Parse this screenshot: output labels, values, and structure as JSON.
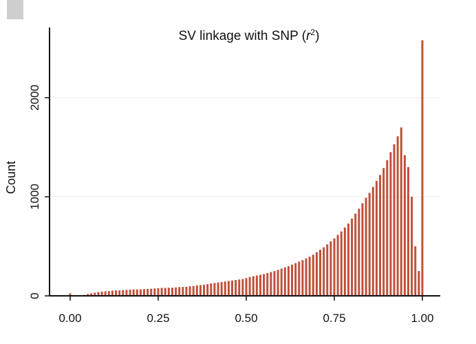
{
  "chart_data": {
    "type": "bar",
    "title": "SV linkage with SNP (r²)",
    "title_main": "SV linkage with SNP (",
    "title_var": "r",
    "title_sup": "2",
    "title_end": ")",
    "xlabel": "",
    "ylabel": "Count",
    "xlim": [
      -0.05,
      1.05
    ],
    "ylim": [
      0,
      2700
    ],
    "xticks": [
      {
        "value": 0.0,
        "label": "0.00"
      },
      {
        "value": 0.25,
        "label": "0.25"
      },
      {
        "value": 0.5,
        "label": "0.50"
      },
      {
        "value": 0.75,
        "label": "0.75"
      },
      {
        "value": 1.0,
        "label": "1.00"
      }
    ],
    "yticks": [
      {
        "value": 0,
        "label": "0"
      },
      {
        "value": 1000,
        "label": "1000"
      },
      {
        "value": 2000,
        "label": "2000"
      }
    ],
    "grid": true,
    "bar_color": "#c0503a",
    "bins": {
      "x": [
        0.0,
        0.04,
        0.05,
        0.06,
        0.07,
        0.08,
        0.09,
        0.1,
        0.11,
        0.12,
        0.13,
        0.14,
        0.15,
        0.16,
        0.17,
        0.18,
        0.19,
        0.2,
        0.21,
        0.22,
        0.23,
        0.24,
        0.25,
        0.26,
        0.27,
        0.28,
        0.29,
        0.3,
        0.31,
        0.32,
        0.33,
        0.34,
        0.35,
        0.36,
        0.37,
        0.38,
        0.39,
        0.4,
        0.41,
        0.42,
        0.43,
        0.44,
        0.45,
        0.46,
        0.47,
        0.48,
        0.49,
        0.5,
        0.51,
        0.52,
        0.53,
        0.54,
        0.55,
        0.56,
        0.57,
        0.58,
        0.59,
        0.6,
        0.61,
        0.62,
        0.63,
        0.64,
        0.65,
        0.66,
        0.67,
        0.68,
        0.69,
        0.7,
        0.71,
        0.72,
        0.73,
        0.74,
        0.75,
        0.76,
        0.77,
        0.78,
        0.79,
        0.8,
        0.81,
        0.82,
        0.83,
        0.84,
        0.85,
        0.86,
        0.87,
        0.88,
        0.89,
        0.9,
        0.91,
        0.92,
        0.93,
        0.94,
        0.95,
        0.96,
        0.97,
        0.98,
        0.99,
        1.0
      ],
      "values": [
        25,
        10,
        18,
        25,
        32,
        38,
        42,
        45,
        48,
        52,
        55,
        55,
        58,
        60,
        62,
        64,
        65,
        66,
        68,
        70,
        72,
        75,
        78,
        80,
        80,
        82,
        82,
        85,
        88,
        90,
        92,
        96,
        100,
        105,
        108,
        112,
        118,
        125,
        130,
        135,
        140,
        145,
        150,
        155,
        160,
        165,
        170,
        180,
        190,
        198,
        205,
        212,
        220,
        230,
        240,
        250,
        262,
        275,
        288,
        300,
        315,
        330,
        345,
        360,
        378,
        395,
        415,
        440,
        465,
        490,
        520,
        550,
        580,
        615,
        650,
        690,
        730,
        780,
        830,
        880,
        935,
        990,
        1040,
        1100,
        1160,
        1220,
        1290,
        1370,
        1450,
        1530,
        1610,
        1700,
        1420,
        1300,
        1000,
        500,
        250,
        2580
      ]
    }
  }
}
